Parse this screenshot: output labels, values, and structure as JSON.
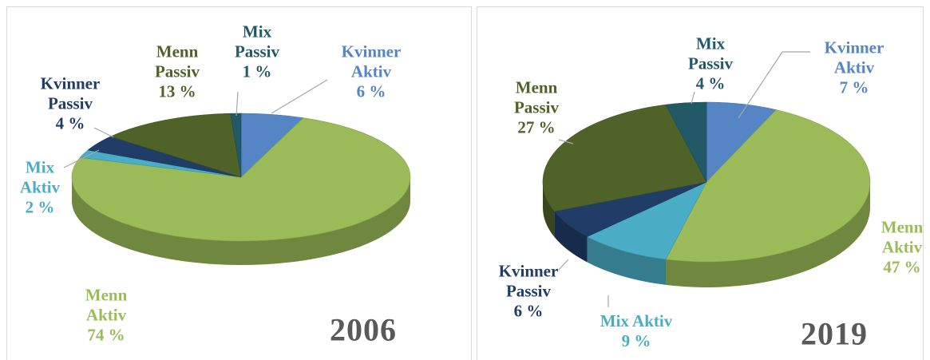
{
  "chart_data": [
    {
      "type": "pie",
      "title": "2006",
      "categories": [
        "Kvinner Aktiv",
        "Menn Aktiv",
        "Mix Aktiv",
        "Kvinner Passiv",
        "Menn Passiv",
        "Mix Passiv"
      ],
      "values": [
        6,
        74,
        2,
        4,
        13,
        1
      ],
      "value_labels": [
        "6 %",
        "74 %",
        "2 %",
        "4 %",
        "13 %",
        "1 %"
      ],
      "colors": [
        "#5585c5",
        "#9bbb59",
        "#4bacc6",
        "#203d67",
        "#4f6228",
        "#215967"
      ]
    },
    {
      "type": "pie",
      "title": "2019",
      "categories": [
        "Kvinner Aktiv",
        "Menn Aktiv",
        "Mix Aktiv",
        "Kvinner Passiv",
        "Menn Passiv",
        "Mix Passiv"
      ],
      "values": [
        7,
        47,
        9,
        6,
        27,
        4
      ],
      "value_labels": [
        "7 %",
        "47 %",
        "9 %",
        "6 %",
        "27 %",
        "4 %"
      ],
      "colors": [
        "#5585c5",
        "#9bbb59",
        "#4bacc6",
        "#203d67",
        "#4f6228",
        "#215967"
      ]
    }
  ]
}
